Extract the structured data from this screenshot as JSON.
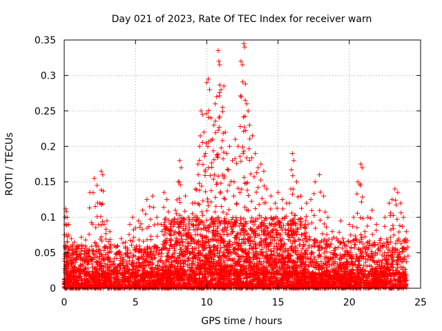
{
  "chart_data": {
    "type": "scatter",
    "title": "Day 021 of 2023, Rate Of TEC Index for receiver warn",
    "xlabel": "GPS time / hours",
    "ylabel": "ROTI / TECUs",
    "xlim": [
      0,
      25
    ],
    "ylim": [
      0,
      0.35
    ],
    "xticks": [
      0,
      5,
      10,
      15,
      20,
      25
    ],
    "xtick_labels": [
      "0",
      "5",
      "10",
      "15",
      "20",
      "25"
    ],
    "yticks": [
      0,
      0.05,
      0.1,
      0.15,
      0.2,
      0.25,
      0.3,
      0.35
    ],
    "ytick_labels": [
      "0",
      "0.05",
      "0.1",
      "0.15",
      "0.2",
      "0.25",
      "0.3",
      "0.35"
    ],
    "grid": true,
    "marker": "plus",
    "color": "#ff0000",
    "points": [
      [
        0.1,
        0.112
      ],
      [
        0.15,
        0.108
      ],
      [
        0.2,
        0.1
      ],
      [
        0.1,
        0.09
      ],
      [
        0.3,
        0.075
      ],
      [
        0.5,
        0.07
      ],
      [
        0.7,
        0.065
      ],
      [
        0.9,
        0.06
      ],
      [
        1.2,
        0.072
      ],
      [
        1.5,
        0.068
      ],
      [
        1.8,
        0.135
      ],
      [
        2.1,
        0.155
      ],
      [
        2.3,
        0.145
      ],
      [
        2.5,
        0.12
      ],
      [
        2.6,
        0.165
      ],
      [
        2.7,
        0.16
      ],
      [
        2.8,
        0.09
      ],
      [
        3.0,
        0.095
      ],
      [
        3.2,
        0.08
      ],
      [
        3.5,
        0.06
      ],
      [
        3.8,
        0.05
      ],
      [
        4.0,
        0.07
      ],
      [
        4.3,
        0.065
      ],
      [
        4.6,
        0.09
      ],
      [
        4.8,
        0.1
      ],
      [
        5.0,
        0.085
      ],
      [
        5.2,
        0.095
      ],
      [
        5.5,
        0.11
      ],
      [
        5.8,
        0.125
      ],
      [
        6.0,
        0.115
      ],
      [
        6.2,
        0.13
      ],
      [
        6.5,
        0.1
      ],
      [
        6.8,
        0.09
      ],
      [
        7.0,
        0.135
      ],
      [
        7.2,
        0.125
      ],
      [
        7.5,
        0.09
      ],
      [
        7.8,
        0.11
      ],
      [
        8.0,
        0.15
      ],
      [
        8.1,
        0.18
      ],
      [
        8.2,
        0.17
      ],
      [
        8.5,
        0.13
      ],
      [
        8.7,
        0.1
      ],
      [
        9.0,
        0.12
      ],
      [
        9.2,
        0.14
      ],
      [
        9.4,
        0.16
      ],
      [
        9.5,
        0.2
      ],
      [
        9.6,
        0.25
      ],
      [
        9.7,
        0.245
      ],
      [
        9.8,
        0.22
      ],
      [
        9.9,
        0.19
      ],
      [
        10.0,
        0.29
      ],
      [
        10.1,
        0.295
      ],
      [
        10.2,
        0.28
      ],
      [
        10.3,
        0.24
      ],
      [
        10.4,
        0.21
      ],
      [
        10.5,
        0.23
      ],
      [
        10.6,
        0.26
      ],
      [
        10.7,
        0.27
      ],
      [
        10.8,
        0.335
      ],
      [
        10.85,
        0.32
      ],
      [
        10.9,
        0.315
      ],
      [
        11.0,
        0.28
      ],
      [
        11.1,
        0.255
      ],
      [
        11.2,
        0.285
      ],
      [
        11.3,
        0.22
      ],
      [
        11.4,
        0.19
      ],
      [
        11.6,
        0.2
      ],
      [
        11.8,
        0.18
      ],
      [
        12.0,
        0.21
      ],
      [
        12.2,
        0.2
      ],
      [
        12.4,
        0.32
      ],
      [
        12.5,
        0.315
      ],
      [
        12.6,
        0.345
      ],
      [
        12.65,
        0.34
      ],
      [
        12.7,
        0.265
      ],
      [
        12.8,
        0.26
      ],
      [
        12.9,
        0.25
      ],
      [
        13.0,
        0.23
      ],
      [
        13.2,
        0.215
      ],
      [
        13.4,
        0.19
      ],
      [
        13.6,
        0.17
      ],
      [
        13.8,
        0.175
      ],
      [
        14.0,
        0.165
      ],
      [
        14.2,
        0.14
      ],
      [
        14.5,
        0.13
      ],
      [
        14.8,
        0.12
      ],
      [
        15.0,
        0.135
      ],
      [
        15.3,
        0.125
      ],
      [
        15.6,
        0.12
      ],
      [
        15.9,
        0.14
      ],
      [
        16.0,
        0.19
      ],
      [
        16.1,
        0.18
      ],
      [
        16.3,
        0.15
      ],
      [
        16.6,
        0.13
      ],
      [
        17.0,
        0.12
      ],
      [
        17.3,
        0.125
      ],
      [
        17.6,
        0.15
      ],
      [
        17.9,
        0.16
      ],
      [
        18.2,
        0.13
      ],
      [
        18.5,
        0.1
      ],
      [
        18.8,
        0.08
      ],
      [
        19.1,
        0.07
      ],
      [
        19.4,
        0.095
      ],
      [
        19.7,
        0.06
      ],
      [
        20.0,
        0.09
      ],
      [
        20.3,
        0.1
      ],
      [
        20.6,
        0.15
      ],
      [
        20.8,
        0.175
      ],
      [
        20.9,
        0.17
      ],
      [
        21.1,
        0.08
      ],
      [
        21.3,
        0.1
      ],
      [
        21.6,
        0.11
      ],
      [
        21.9,
        0.09
      ],
      [
        22.2,
        0.07
      ],
      [
        22.5,
        0.1
      ],
      [
        22.8,
        0.12
      ],
      [
        23.0,
        0.125
      ],
      [
        23.2,
        0.14
      ],
      [
        23.4,
        0.135
      ],
      [
        23.6,
        0.12
      ],
      [
        23.8,
        0.1
      ],
      [
        24.0,
        0.08
      ]
    ],
    "density_bands": [
      {
        "x_range": [
          0,
          24
        ],
        "y_range": [
          0,
          0.02
        ],
        "density": "very-high"
      },
      {
        "x_range": [
          7,
          17
        ],
        "y_range": [
          0.02,
          0.1
        ],
        "density": "high"
      },
      {
        "x_range": [
          0,
          7
        ],
        "y_range": [
          0.02,
          0.06
        ],
        "density": "medium"
      },
      {
        "x_range": [
          17,
          24
        ],
        "y_range": [
          0.02,
          0.07
        ],
        "density": "medium"
      }
    ]
  }
}
